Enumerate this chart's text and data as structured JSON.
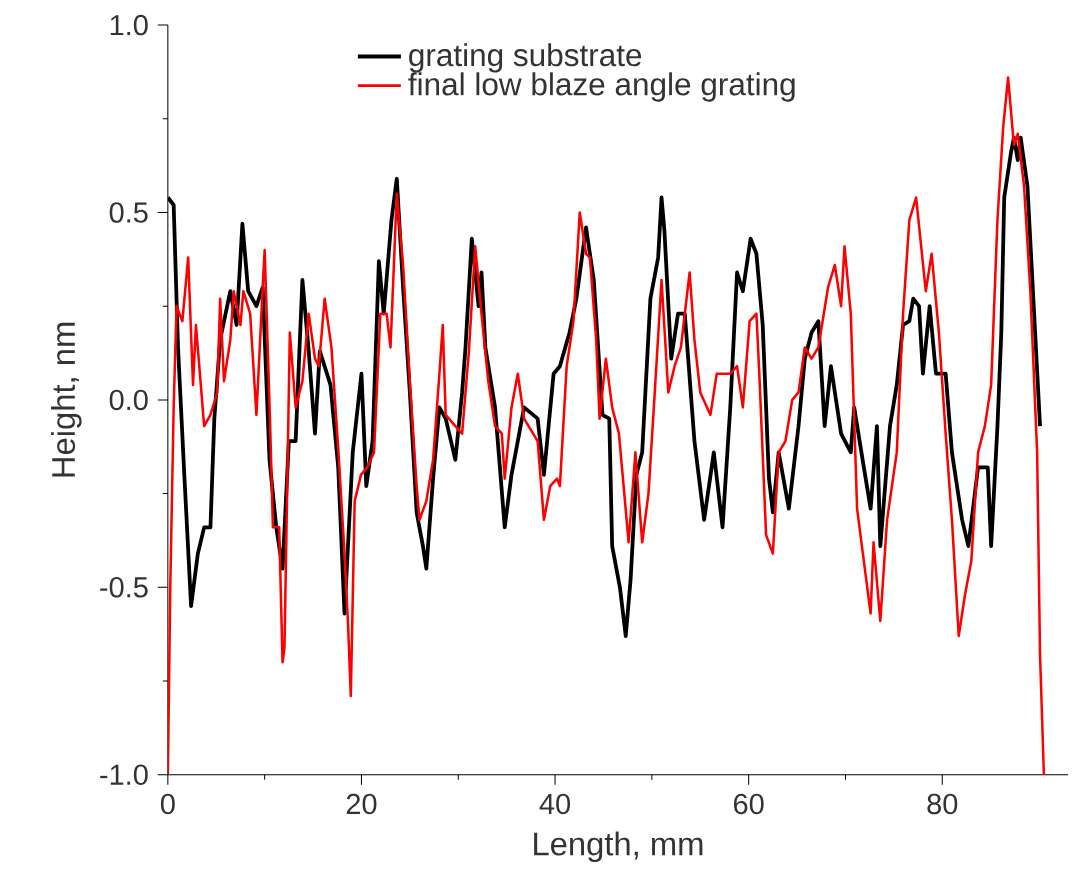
{
  "chart_data": {
    "type": "line",
    "xlabel": "Length, mm",
    "ylabel": "Height, nm",
    "xlim": [
      0,
      93
    ],
    "ylim": [
      -1.0,
      1.0
    ],
    "xticks": [
      0,
      20,
      40,
      60,
      80
    ],
    "yticks": [
      {
        "value": -1.0,
        "label": "-1.0"
      },
      {
        "value": -0.5,
        "label": "-0.5"
      },
      {
        "value": 0.0,
        "label": "0.0"
      },
      {
        "value": 0.5,
        "label": "0.5"
      },
      {
        "value": 1.0,
        "label": "1.0"
      }
    ],
    "legend": "top",
    "grid": false,
    "marker": "none",
    "line_style": "solid",
    "series": [
      {
        "name": "grating substrate",
        "color": "#000000",
        "x": [
          0,
          0.6,
          1.05,
          1.7,
          2.4,
          3.1,
          3.75,
          4.4,
          4.8,
          5.4,
          6.45,
          7.1,
          7.7,
          8.3,
          9.15,
          9.8,
          10.5,
          11.2,
          11.85,
          12.5,
          13.2,
          13.9,
          14.55,
          15.2,
          15.7,
          16.8,
          17.6,
          18.25,
          19.1,
          20.0,
          20.5,
          21.15,
          21.8,
          22.3,
          23.1,
          23.65,
          24.3,
          25.0,
          25.7,
          26.35,
          26.7,
          27.4,
          28.05,
          28.7,
          29.7,
          30.4,
          30.75,
          31.4,
          32.1,
          32.4,
          32.8,
          33.8,
          34.8,
          35.5,
          36.15,
          36.8,
          38.2,
          38.85,
          39.85,
          40.5,
          41.5,
          42.2,
          43.2,
          44.0,
          44.9,
          45.6,
          45.9,
          46.7,
          47.3,
          47.8,
          48.4,
          49.0,
          49.85,
          50.65,
          51.0,
          51.3,
          52.0,
          52.7,
          53.4,
          54.4,
          55.4,
          56.4,
          57.3,
          58.1,
          58.8,
          59.4,
          60.2,
          60.8,
          61.45,
          62.1,
          62.5,
          63.1,
          64.15,
          65.15,
          65.8,
          66.5,
          67.2,
          67.85,
          68.5,
          69.55,
          70.55,
          70.9,
          71.9,
          72.6,
          73.25,
          73.6,
          74.6,
          75.3,
          75.95,
          76.6,
          77.0,
          77.6,
          78.0,
          78.7,
          79.35,
          80.35,
          81.0,
          82.05,
          82.7,
          83.7,
          84.7,
          85.05,
          85.7,
          86.1,
          86.4,
          87.1,
          87.4,
          87.8,
          88.1,
          88.8,
          89.45,
          90.1
        ],
        "values": [
          0.54,
          0.52,
          0.14,
          -0.2,
          -0.55,
          -0.41,
          -0.34,
          -0.34,
          -0.05,
          0.16,
          0.29,
          0.2,
          0.47,
          0.29,
          0.25,
          0.3,
          -0.16,
          -0.34,
          -0.45,
          -0.11,
          -0.11,
          0.32,
          0.13,
          -0.09,
          0.13,
          0.04,
          -0.18,
          -0.57,
          -0.14,
          0.07,
          -0.23,
          -0.11,
          0.37,
          0.23,
          0.48,
          0.59,
          0.3,
          0.02,
          -0.3,
          -0.39,
          -0.45,
          -0.21,
          -0.02,
          -0.05,
          -0.16,
          0.02,
          0.14,
          0.43,
          0.25,
          0.34,
          0.14,
          -0.02,
          -0.34,
          -0.2,
          -0.11,
          -0.02,
          -0.05,
          -0.2,
          0.07,
          0.09,
          0.18,
          0.27,
          0.46,
          0.32,
          -0.04,
          -0.05,
          -0.39,
          -0.5,
          -0.63,
          -0.48,
          -0.2,
          -0.14,
          0.27,
          0.38,
          0.54,
          0.45,
          0.11,
          0.23,
          0.23,
          -0.11,
          -0.32,
          -0.14,
          -0.34,
          -0.02,
          0.34,
          0.29,
          0.43,
          0.39,
          0.2,
          -0.21,
          -0.3,
          -0.14,
          -0.29,
          -0.07,
          0.11,
          0.18,
          0.21,
          -0.07,
          0.09,
          -0.09,
          -0.14,
          -0.02,
          -0.18,
          -0.29,
          -0.07,
          -0.39,
          -0.07,
          0.04,
          0.2,
          0.21,
          0.27,
          0.25,
          0.07,
          0.25,
          0.07,
          0.07,
          -0.14,
          -0.32,
          -0.39,
          -0.18,
          -0.18,
          -0.39,
          -0.07,
          0.18,
          0.54,
          0.66,
          0.7,
          0.64,
          0.7,
          0.57,
          0.25,
          -0.07
        ]
      },
      {
        "name": "final low blaze angle grating",
        "color": "#ff0000",
        "x": [
          0,
          0.25,
          0.6,
          0.9,
          1.5,
          2.1,
          2.6,
          2.9,
          3.75,
          4.4,
          5.1,
          5.4,
          5.8,
          6.45,
          6.8,
          7.5,
          7.8,
          8.5,
          9.15,
          9.8,
          10.0,
          10.55,
          10.85,
          11.5,
          11.85,
          12.05,
          12.6,
          13.2,
          13.9,
          14.55,
          15.2,
          15.6,
          16.2,
          16.9,
          17.6,
          18.25,
          18.6,
          18.9,
          19.3,
          19.95,
          20.6,
          21.3,
          21.95,
          22.6,
          23.0,
          23.65,
          24.3,
          25.0,
          25.7,
          26.0,
          26.7,
          27.4,
          28.0,
          28.4,
          28.7,
          29.7,
          30.4,
          31.1,
          31.75,
          32.4,
          33.1,
          33.8,
          34.5,
          34.8,
          35.5,
          36.15,
          36.8,
          38.2,
          38.85,
          39.5,
          40.2,
          40.5,
          41.2,
          41.9,
          42.55,
          43.2,
          43.6,
          44.25,
          44.6,
          45.25,
          45.9,
          46.6,
          47.6,
          48.3,
          49.0,
          49.65,
          50.3,
          51.0,
          51.7,
          52.35,
          53.0,
          53.9,
          54.4,
          55.0,
          56.05,
          56.7,
          58.1,
          58.8,
          59.4,
          60.1,
          60.8,
          61.1,
          61.8,
          62.5,
          63.1,
          63.8,
          64.5,
          65.15,
          65.8,
          66.5,
          67.2,
          68.2,
          68.9,
          69.55,
          69.9,
          70.55,
          71.2,
          71.9,
          72.6,
          72.9,
          73.6,
          74.3,
          75.3,
          75.95,
          76.6,
          77.3,
          78.3,
          78.9,
          79.65,
          80.35,
          81.0,
          81.7,
          82.35,
          83.0,
          83.7,
          84.4,
          85.05,
          85.7,
          86.3,
          86.8,
          87.4,
          87.8,
          88.45,
          89.1,
          89.8,
          90.1,
          90.5
        ],
        "values": [
          -1.0,
          -0.5,
          -0.02,
          0.25,
          0.21,
          0.38,
          0.04,
          0.2,
          -0.07,
          -0.04,
          0.02,
          0.27,
          0.05,
          0.16,
          0.29,
          0.2,
          0.29,
          0.23,
          -0.04,
          0.3,
          0.4,
          -0.05,
          -0.34,
          -0.34,
          -0.7,
          -0.66,
          0.18,
          -0.02,
          0.05,
          0.23,
          0.11,
          0.09,
          0.27,
          0.14,
          -0.13,
          -0.41,
          -0.59,
          -0.79,
          -0.27,
          -0.2,
          -0.18,
          -0.14,
          0.23,
          0.23,
          0.14,
          0.55,
          0.36,
          0.05,
          -0.23,
          -0.32,
          -0.27,
          -0.16,
          0.05,
          0.2,
          -0.04,
          -0.07,
          -0.09,
          0.13,
          0.41,
          0.23,
          0.05,
          -0.07,
          -0.09,
          -0.21,
          -0.02,
          0.07,
          -0.05,
          -0.11,
          -0.32,
          -0.23,
          -0.21,
          -0.23,
          0.09,
          0.21,
          0.5,
          0.39,
          0.38,
          0.16,
          -0.05,
          0.11,
          -0.02,
          -0.09,
          -0.38,
          -0.14,
          -0.38,
          -0.25,
          0.02,
          0.32,
          0.02,
          0.09,
          0.14,
          0.34,
          0.16,
          0.02,
          -0.04,
          0.07,
          0.07,
          0.09,
          -0.02,
          0.21,
          0.23,
          0.07,
          -0.36,
          -0.41,
          -0.14,
          -0.11,
          0.0,
          0.02,
          0.14,
          0.11,
          0.14,
          0.3,
          0.36,
          0.25,
          0.41,
          0.23,
          -0.29,
          -0.43,
          -0.57,
          -0.38,
          -0.59,
          -0.32,
          -0.14,
          0.23,
          0.48,
          0.54,
          0.29,
          0.39,
          0.18,
          -0.09,
          -0.32,
          -0.63,
          -0.52,
          -0.43,
          -0.14,
          -0.07,
          0.04,
          0.48,
          0.73,
          0.86,
          0.68,
          0.71,
          0.57,
          0.29,
          -0.14,
          -0.68,
          -1.0
        ]
      }
    ]
  }
}
